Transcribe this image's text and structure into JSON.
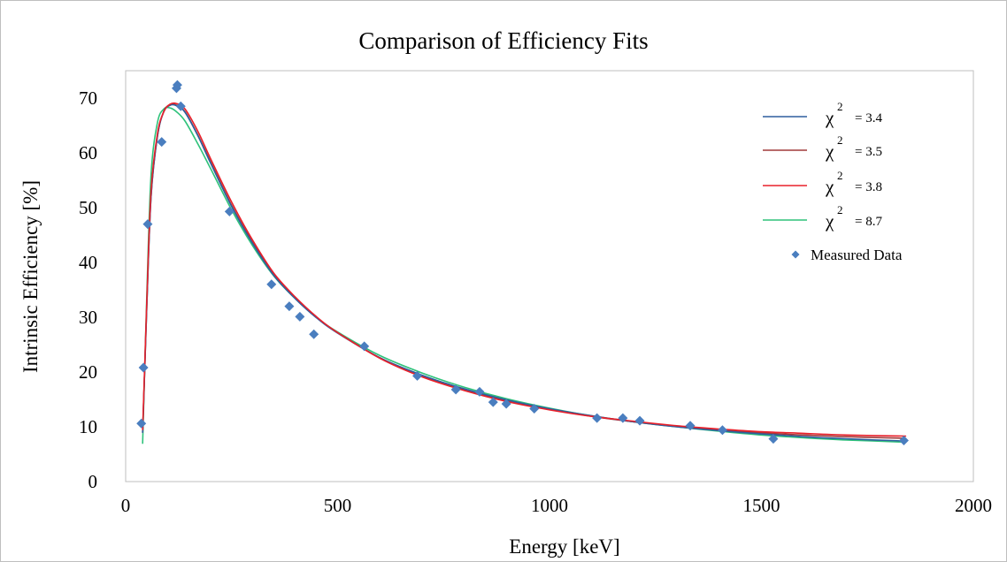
{
  "chart_data": {
    "type": "line",
    "title": "Comparison of Efficiency Fits",
    "xlabel": "Energy  [keV]",
    "ylabel": "Intrinsic Efficiency  [%]",
    "xlim": [
      0,
      2000
    ],
    "ylim": [
      0,
      75
    ],
    "xticks": [
      0,
      500,
      1000,
      1500,
      2000
    ],
    "yticks": [
      0,
      10,
      20,
      30,
      40,
      50,
      60,
      70
    ],
    "grid": false,
    "legend_position": "top-right",
    "series": [
      {
        "name": "χ2 = 3.4",
        "legend_symbol": "χ",
        "legend_sup": "2",
        "legend_value": "= 3.4",
        "color": "#2e5f9e",
        "style": "line",
        "x": [
          40,
          50,
          60,
          75,
          90,
          105,
          120,
          140,
          170,
          200,
          250,
          300,
          350,
          400,
          450,
          500,
          600,
          700,
          800,
          900,
          1000,
          1100,
          1200,
          1300,
          1400,
          1500,
          1600,
          1700,
          1840
        ],
        "y": [
          9,
          32,
          52,
          63,
          67.5,
          68.7,
          68.6,
          67.4,
          63.2,
          58.2,
          50.2,
          43.4,
          37.6,
          33.4,
          29.9,
          27.1,
          22.6,
          19.4,
          16.9,
          14.9,
          13.3,
          12,
          10.9,
          10,
          9.3,
          8.7,
          8.2,
          7.8,
          7.4
        ]
      },
      {
        "name": "χ2 = 3.5",
        "legend_symbol": "χ",
        "legend_sup": "2",
        "legend_value": "= 3.5",
        "color": "#a03a3a",
        "style": "line",
        "x": [
          40,
          50,
          60,
          75,
          90,
          105,
          120,
          140,
          170,
          200,
          250,
          300,
          350,
          400,
          450,
          500,
          600,
          700,
          800,
          900,
          1000,
          1100,
          1200,
          1300,
          1400,
          1500,
          1600,
          1700,
          1840
        ],
        "y": [
          9,
          32,
          52,
          63,
          67.6,
          68.8,
          68.7,
          67.5,
          63.3,
          58.4,
          50.4,
          43.6,
          37.8,
          33.5,
          30,
          27.2,
          22.6,
          19.3,
          16.8,
          14.8,
          13.2,
          11.9,
          10.9,
          10.1,
          9.4,
          8.9,
          8.5,
          8.2,
          7.9
        ]
      },
      {
        "name": "χ2 = 3.8",
        "legend_symbol": "χ",
        "legend_sup": "2",
        "legend_value": "= 3.8",
        "color": "#e8202a",
        "style": "line",
        "x": [
          40,
          50,
          60,
          75,
          90,
          105,
          120,
          140,
          170,
          200,
          250,
          300,
          350,
          400,
          450,
          500,
          600,
          700,
          800,
          900,
          1000,
          1100,
          1200,
          1300,
          1400,
          1500,
          1600,
          1700,
          1840
        ],
        "y": [
          9.5,
          33,
          53,
          63.5,
          67.5,
          68.9,
          69,
          68,
          64,
          59,
          51,
          44,
          38,
          33.7,
          30.1,
          27.2,
          22.5,
          19.1,
          16.6,
          14.6,
          13.1,
          11.9,
          11,
          10.2,
          9.6,
          9.1,
          8.8,
          8.5,
          8.3
        ]
      },
      {
        "name": "χ2 = 8.7",
        "legend_symbol": "χ",
        "legend_sup": "2",
        "legend_value": "= 8.7",
        "color": "#2ec27a",
        "style": "line",
        "x": [
          40,
          50,
          60,
          75,
          90,
          105,
          120,
          140,
          170,
          200,
          250,
          300,
          350,
          400,
          450,
          500,
          600,
          700,
          800,
          900,
          1000,
          1100,
          1200,
          1300,
          1400,
          1500,
          1600,
          1700,
          1840
        ],
        "y": [
          7,
          34,
          56,
          65.5,
          68,
          68.2,
          67.5,
          65.8,
          61.7,
          57.2,
          49.6,
          43,
          37.5,
          33.4,
          30,
          27.3,
          23,
          19.8,
          17.2,
          15.1,
          13.4,
          12,
          10.9,
          10,
          9.2,
          8.5,
          8,
          7.6,
          7.2
        ]
      },
      {
        "name": "Measured Data",
        "color": "#4a7ebf",
        "style": "marker",
        "x": [
          37,
          42,
          52,
          85,
          120,
          122,
          130,
          245,
          344,
          386,
          411,
          444,
          563,
          688,
          779,
          835,
          867,
          898,
          964,
          1112,
          1173,
          1213,
          1332,
          1408,
          1528,
          1836
        ],
        "y": [
          10.6,
          20.8,
          47,
          62,
          71.8,
          72.4,
          68.5,
          49.3,
          36,
          32,
          30.1,
          26.9,
          24.7,
          19.3,
          16.8,
          16.4,
          14.5,
          14.2,
          13.3,
          11.6,
          11.6,
          11.1,
          10.2,
          9.4,
          7.8,
          7.5
        ]
      }
    ]
  }
}
